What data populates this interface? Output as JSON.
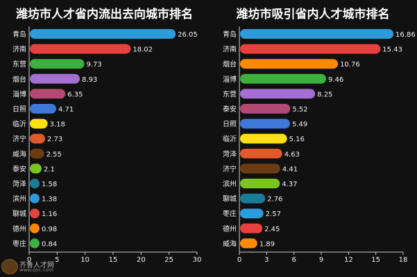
{
  "chart_data": [
    {
      "type": "bar",
      "orientation": "horizontal",
      "title": "潍坊市人才省内流出去向城市排名",
      "categories": [
        "青岛",
        "济南",
        "东营",
        "烟台",
        "淄博",
        "日照",
        "临沂",
        "济宁",
        "威海",
        "泰安",
        "菏泽",
        "滨州",
        "聊城",
        "德州",
        "枣庄"
      ],
      "values": [
        26.05,
        18.02,
        9.73,
        8.93,
        6.35,
        4.71,
        3.18,
        2.73,
        2.55,
        2.1,
        1.58,
        1.38,
        1.16,
        0.98,
        0.84
      ],
      "value_labels": [
        "26.05",
        "18.02",
        "9.73",
        "8.93",
        "6.35",
        "4.71",
        "3.18",
        "2.73",
        "2.55",
        "2.1",
        "1.58",
        "1.38",
        "1.16",
        "0.98",
        "0.84"
      ],
      "colors": [
        "#2e9bdc",
        "#e8403f",
        "#3db13d",
        "#a46fd1",
        "#b34a73",
        "#3f78d8",
        "#ffe015",
        "#e05a2c",
        "#6b3c14",
        "#7bc520",
        "#1a7c97",
        "#2e9bdc",
        "#e8403f",
        "#ff8a00",
        "#3db13d"
      ],
      "xlim": [
        0,
        30
      ],
      "xticks": [
        0,
        5,
        10,
        15,
        20,
        25,
        30
      ],
      "xlabel": "",
      "ylabel": "",
      "grid": false
    },
    {
      "type": "bar",
      "orientation": "horizontal",
      "title": "潍坊市吸引省内人才城市排名",
      "categories": [
        "青岛",
        "济南",
        "烟台",
        "淄博",
        "东营",
        "泰安",
        "日照",
        "临沂",
        "菏泽",
        "济宁",
        "滨州",
        "聊城",
        "枣庄",
        "德州",
        "威海"
      ],
      "values": [
        16.86,
        15.43,
        10.76,
        9.46,
        8.25,
        5.52,
        5.49,
        5.16,
        4.63,
        4.41,
        4.37,
        2.76,
        2.57,
        2.45,
        1.89
      ],
      "value_labels": [
        "16.86",
        "15.43",
        "10.76",
        "9.46",
        "8.25",
        "5.52",
        "5.49",
        "5.16",
        "4.63",
        "4.41",
        "4.37",
        "2.76",
        "2.57",
        "2.45",
        "1.89"
      ],
      "colors": [
        "#2e9bdc",
        "#e8403f",
        "#ff8a00",
        "#3db13d",
        "#a46fd1",
        "#b34a73",
        "#3f78d8",
        "#ffe015",
        "#e05a2c",
        "#6b3c14",
        "#7bc520",
        "#1a7c97",
        "#2e9bdc",
        "#e8403f",
        "#ff8a00"
      ],
      "xlim": [
        0,
        18
      ],
      "xticks": [
        0,
        3,
        6,
        9,
        12,
        15,
        18
      ],
      "xlabel": "",
      "ylabel": "",
      "grid": false
    }
  ],
  "watermark": {
    "brand": "齐鲁人才网",
    "url": "www.qlrc.com"
  }
}
